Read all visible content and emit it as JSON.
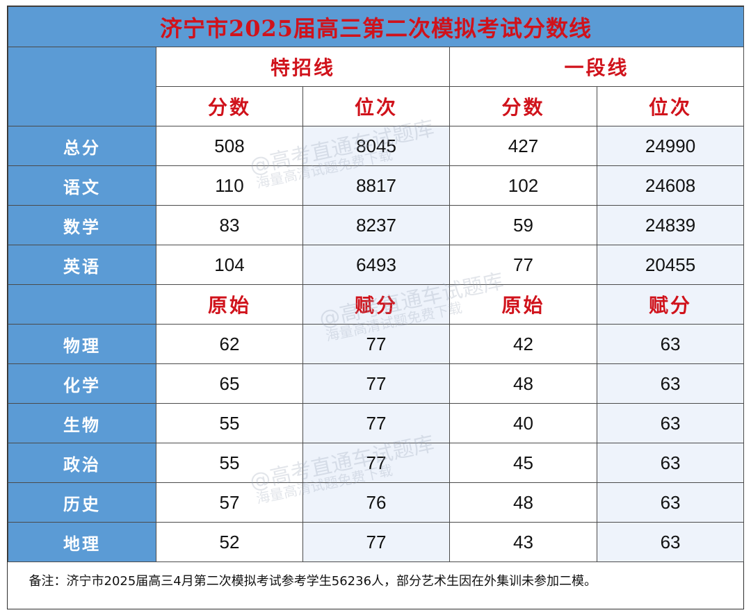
{
  "title": "济宁市2025届高三第二次模拟考试分数线",
  "groups": {
    "special": "特招线",
    "first": "一段线"
  },
  "headers1": {
    "score": "分数",
    "rank": "位次"
  },
  "rows1": [
    {
      "subject": "总分",
      "c1": "508",
      "c2": "8045",
      "c3": "427",
      "c4": "24990"
    },
    {
      "subject": "语文",
      "c1": "110",
      "c2": "8817",
      "c3": "102",
      "c4": "24608"
    },
    {
      "subject": "数学",
      "c1": "83",
      "c2": "8237",
      "c3": "59",
      "c4": "24839"
    },
    {
      "subject": "英语",
      "c1": "104",
      "c2": "6493",
      "c3": "77",
      "c4": "20455"
    }
  ],
  "headers2": {
    "raw": "原始",
    "assigned": "赋分"
  },
  "rows2": [
    {
      "subject": "物理",
      "c1": "62",
      "c2": "77",
      "c3": "42",
      "c4": "63"
    },
    {
      "subject": "化学",
      "c1": "65",
      "c2": "77",
      "c3": "48",
      "c4": "63"
    },
    {
      "subject": "生物",
      "c1": "55",
      "c2": "77",
      "c3": "40",
      "c4": "63"
    },
    {
      "subject": "政治",
      "c1": "55",
      "c2": "77",
      "c3": "45",
      "c4": "63"
    },
    {
      "subject": "历史",
      "c1": "57",
      "c2": "76",
      "c3": "48",
      "c4": "63"
    },
    {
      "subject": "地理",
      "c1": "52",
      "c2": "77",
      "c3": "43",
      "c4": "63"
    }
  ],
  "note": "备注：济宁市2025届高三4月第二次模拟考试参考学生56236人，部分艺术生因在外集训未参加二模。",
  "watermark": {
    "line1": "@高考直通车试题库",
    "line2": "海量高清试题免费下载"
  },
  "colors": {
    "header_blue": "#5b9bd5",
    "red": "#d0121b",
    "tint": "#eef3fb"
  }
}
